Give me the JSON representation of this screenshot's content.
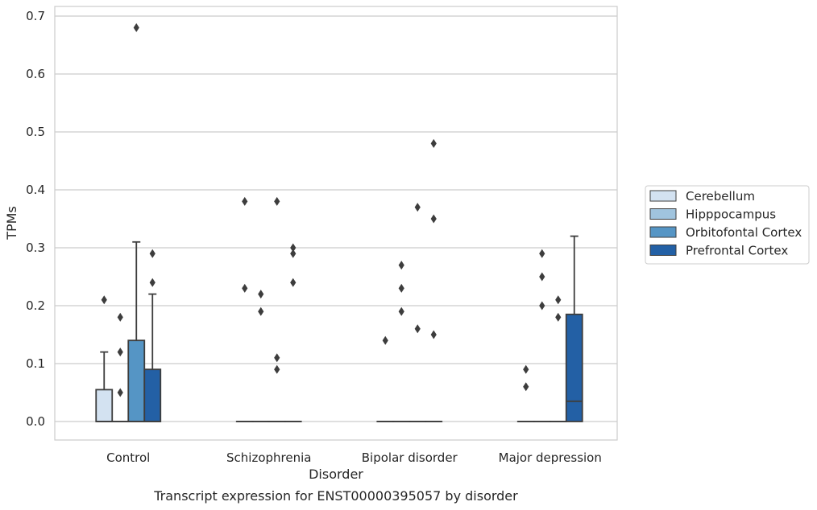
{
  "chart_data": {
    "type": "boxplot",
    "xlabel": "Disorder",
    "ylabel": "TPMs",
    "caption": "Transcript expression for ENST00000395057 by disorder",
    "ylim": [
      -0.034,
      0.715
    ],
    "yticks": [
      "0.0",
      "0.1",
      "0.2",
      "0.3",
      "0.4",
      "0.5",
      "0.6",
      "0.7"
    ],
    "ytick_values": [
      0.0,
      0.1,
      0.2,
      0.3,
      0.4,
      0.5,
      0.6,
      0.7
    ],
    "grid": true,
    "legend_position": "right",
    "categories": [
      "Control",
      "Schizophrenia",
      "Bipolar disorder",
      "Major depression"
    ],
    "series": [
      {
        "name": "Cerebellum",
        "color": "#d3e2f1",
        "boxes": [
          {
            "q1": 0.0,
            "median": 0.0,
            "q3": 0.055,
            "whisker_low": 0.0,
            "whisker_high": 0.12,
            "outliers": [
              0.21
            ]
          },
          {
            "q1": 0.0,
            "median": 0.0,
            "q3": 0.0,
            "whisker_low": 0.0,
            "whisker_high": 0.0,
            "outliers": [
              0.38,
              0.23
            ]
          },
          {
            "q1": 0.0,
            "median": 0.0,
            "q3": 0.0,
            "whisker_low": 0.0,
            "whisker_high": 0.0,
            "outliers": [
              0.14
            ]
          },
          {
            "q1": 0.0,
            "median": 0.0,
            "q3": 0.0,
            "whisker_low": 0.0,
            "whisker_high": 0.0,
            "outliers": [
              0.09,
              0.06
            ]
          }
        ]
      },
      {
        "name": "Hipppocampus",
        "color": "#a0c4de",
        "boxes": [
          {
            "q1": 0.0,
            "median": 0.0,
            "q3": 0.0,
            "whisker_low": 0.0,
            "whisker_high": 0.0,
            "outliers": [
              0.18,
              0.12,
              0.05
            ]
          },
          {
            "q1": 0.0,
            "median": 0.0,
            "q3": 0.0,
            "whisker_low": 0.0,
            "whisker_high": 0.0,
            "outliers": [
              0.22,
              0.19
            ]
          },
          {
            "q1": 0.0,
            "median": 0.0,
            "q3": 0.0,
            "whisker_low": 0.0,
            "whisker_high": 0.0,
            "outliers": [
              0.27,
              0.23,
              0.19
            ]
          },
          {
            "q1": 0.0,
            "median": 0.0,
            "q3": 0.0,
            "whisker_low": 0.0,
            "whisker_high": 0.0,
            "outliers": [
              0.29,
              0.25,
              0.2
            ]
          }
        ]
      },
      {
        "name": "Orbitofontal Cortex",
        "color": "#5595c5",
        "boxes": [
          {
            "q1": 0.0,
            "median": 0.0,
            "q3": 0.14,
            "whisker_low": 0.0,
            "whisker_high": 0.31,
            "outliers": [
              0.68
            ]
          },
          {
            "q1": 0.0,
            "median": 0.0,
            "q3": 0.0,
            "whisker_low": 0.0,
            "whisker_high": 0.0,
            "outliers": [
              0.38,
              0.11,
              0.09
            ]
          },
          {
            "q1": 0.0,
            "median": 0.0,
            "q3": 0.0,
            "whisker_low": 0.0,
            "whisker_high": 0.0,
            "outliers": [
              0.37,
              0.16
            ]
          },
          {
            "q1": 0.0,
            "median": 0.0,
            "q3": 0.0,
            "whisker_low": 0.0,
            "whisker_high": 0.0,
            "outliers": [
              0.21,
              0.18
            ]
          }
        ]
      },
      {
        "name": "Prefrontal Cortex",
        "color": "#2360a5",
        "boxes": [
          {
            "q1": 0.0,
            "median": 0.0,
            "q3": 0.09,
            "whisker_low": 0.0,
            "whisker_high": 0.22,
            "outliers": [
              0.29,
              0.24
            ]
          },
          {
            "q1": 0.0,
            "median": 0.0,
            "q3": 0.0,
            "whisker_low": 0.0,
            "whisker_high": 0.0,
            "outliers": [
              0.3,
              0.29,
              0.24
            ]
          },
          {
            "q1": 0.0,
            "median": 0.0,
            "q3": 0.0,
            "whisker_low": 0.0,
            "whisker_high": 0.0,
            "outliers": [
              0.48,
              0.35,
              0.15
            ]
          },
          {
            "q1": 0.0,
            "median": 0.035,
            "q3": 0.185,
            "whisker_low": 0.0,
            "whisker_high": 0.32,
            "outliers": []
          }
        ]
      }
    ]
  }
}
